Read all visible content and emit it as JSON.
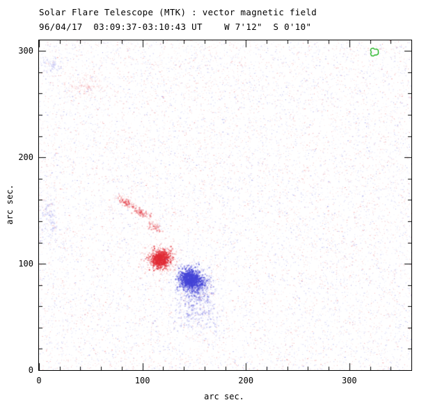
{
  "header": {
    "title": "Solar Flare Telescope (MTK) : vector magnetic field",
    "subtitle": "96/04/17  03:09:37-03:10:43 UT    W 7'12\"  S 0'10\""
  },
  "chart_data": {
    "type": "heatmap",
    "title": "Solar Flare Telescope (MTK) : vector magnetic field",
    "subtitle": "96/04/17  03:09:37-03:10:43 UT    W 7'12\"  S 0'10\"",
    "xlabel": "arc sec.",
    "ylabel": "arc sec.",
    "xlim": [
      0,
      360
    ],
    "ylim": [
      0,
      310
    ],
    "xticks": [
      0,
      100,
      200,
      300
    ],
    "yticks": [
      0,
      100,
      200,
      300
    ],
    "minor_tick_interval": 20,
    "grid": false,
    "legend": "none",
    "colors": {
      "positive_rgb": "225,45,55",
      "negative_rgb": "70,70,215",
      "contour": "#00a800",
      "frame": "#000000",
      "background": "#ffffff"
    },
    "noise": {
      "seed": 1234,
      "density_dots": 16000,
      "positive_fraction": 0.48
    },
    "features": [
      {
        "name": "red-pore-core",
        "polarity": "positive",
        "x": 117,
        "y": 105,
        "sigma_x": 4.5,
        "sigma_y": 4.0,
        "angle_deg": 0,
        "dots": 1000,
        "alpha": 0.9
      },
      {
        "name": "red-pore-halo",
        "polarity": "positive",
        "x": 117,
        "y": 105,
        "sigma_x": 8.0,
        "sigma_y": 7.0,
        "angle_deg": 0,
        "dots": 350,
        "alpha": 0.35
      },
      {
        "name": "blue-pore-core",
        "polarity": "negative",
        "x": 146,
        "y": 86,
        "sigma_x": 5.0,
        "sigma_y": 4.5,
        "angle_deg": 25,
        "dots": 1300,
        "alpha": 0.9
      },
      {
        "name": "blue-pore-halo",
        "polarity": "negative",
        "x": 147,
        "y": 84,
        "sigma_x": 9.0,
        "sigma_y": 8.0,
        "angle_deg": 0,
        "dots": 450,
        "alpha": 0.35
      },
      {
        "name": "blue-pore-east-extension",
        "polarity": "negative",
        "x": 156,
        "y": 82,
        "sigma_x": 5.0,
        "sigma_y": 3.5,
        "angle_deg": 0,
        "dots": 220,
        "alpha": 0.5
      },
      {
        "name": "red-streak-west",
        "polarity": "positive",
        "x": 84,
        "y": 158,
        "sigma_x": 5.0,
        "sigma_y": 1.8,
        "angle_deg": 28,
        "dots": 130,
        "alpha": 0.5
      },
      {
        "name": "red-streak-mid",
        "polarity": "positive",
        "x": 99,
        "y": 148,
        "sigma_x": 4.5,
        "sigma_y": 1.8,
        "angle_deg": 30,
        "dots": 110,
        "alpha": 0.5
      },
      {
        "name": "red-streak-east",
        "polarity": "positive",
        "x": 111,
        "y": 136,
        "sigma_x": 4.0,
        "sigma_y": 2.0,
        "angle_deg": 35,
        "dots": 90,
        "alpha": 0.45
      },
      {
        "name": "blue-tail-south",
        "polarity": "negative",
        "x": 152,
        "y": 72,
        "sigma_x": 7.0,
        "sigma_y": 6.0,
        "angle_deg": 0,
        "dots": 260,
        "alpha": 0.4
      },
      {
        "name": "blue-scatter-south",
        "polarity": "negative",
        "x": 153,
        "y": 54,
        "sigma_x": 13.0,
        "sigma_y": 10.0,
        "angle_deg": 0,
        "dots": 330,
        "alpha": 0.3
      },
      {
        "name": "faint-red-patch-northwest",
        "polarity": "positive",
        "x": 42,
        "y": 268,
        "sigma_x": 9.0,
        "sigma_y": 5.0,
        "angle_deg": 0,
        "dots": 160,
        "alpha": 0.18
      },
      {
        "name": "faint-blue-patch-west-edge",
        "polarity": "negative",
        "x": 9,
        "y": 145,
        "sigma_x": 4.0,
        "sigma_y": 12.0,
        "angle_deg": 0,
        "dots": 150,
        "alpha": 0.2
      },
      {
        "name": "faint-blue-patch-nw-corner",
        "polarity": "negative",
        "x": 10,
        "y": 288,
        "sigma_x": 5.0,
        "sigma_y": 4.0,
        "angle_deg": 0,
        "dots": 90,
        "alpha": 0.2
      }
    ],
    "contours": [
      {
        "name": "green-contour-northeast",
        "x": 324,
        "y": 299,
        "radius_arcsec": 4
      }
    ]
  }
}
